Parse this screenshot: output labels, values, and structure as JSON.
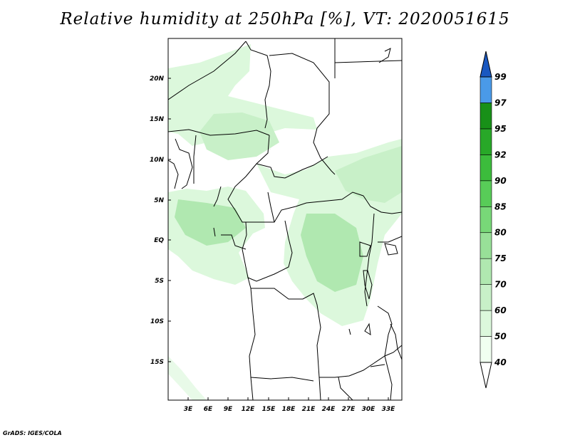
{
  "title": "Relative humidity at 250hPa [%], VT: 2020051615",
  "credit": "GrADS: IGES/COLA",
  "map": {
    "lon_range": [
      0,
      35
    ],
    "lat_range": [
      -20,
      25
    ],
    "lat_labels": [
      "20N",
      "15N",
      "10N",
      "5N",
      "EQ",
      "5S",
      "10S",
      "15S"
    ],
    "lon_labels": [
      "3E",
      "6E",
      "9E",
      "12E",
      "15E",
      "18E",
      "21E",
      "24E",
      "27E",
      "30E",
      "33E"
    ]
  },
  "colorbar": {
    "labels": [
      "40",
      "50",
      "60",
      "70",
      "75",
      "80",
      "85",
      "90",
      "92",
      "95",
      "97",
      "99"
    ],
    "colors": [
      "#f0fff0",
      "#dcf8dc",
      "#c8f0c8",
      "#b0e8b0",
      "#98e098",
      "#78d878",
      "#58cc58",
      "#3cbc3c",
      "#28a828",
      "#189018",
      "#4a9ae8",
      "#2a74d8",
      "#1a58c0"
    ]
  },
  "chart_data": {
    "type": "heatmap",
    "title": "Relative humidity at 250hPa [%], VT: 2020051615",
    "variable": "Relative humidity",
    "units": "%",
    "level": "250hPa",
    "valid_time": "2020051615",
    "x_range": [
      0,
      35
    ],
    "y_range": [
      -20,
      25
    ],
    "contour_levels": [
      40,
      50,
      60,
      70,
      75,
      80,
      85,
      90,
      92,
      95,
      97,
      99
    ]
  }
}
